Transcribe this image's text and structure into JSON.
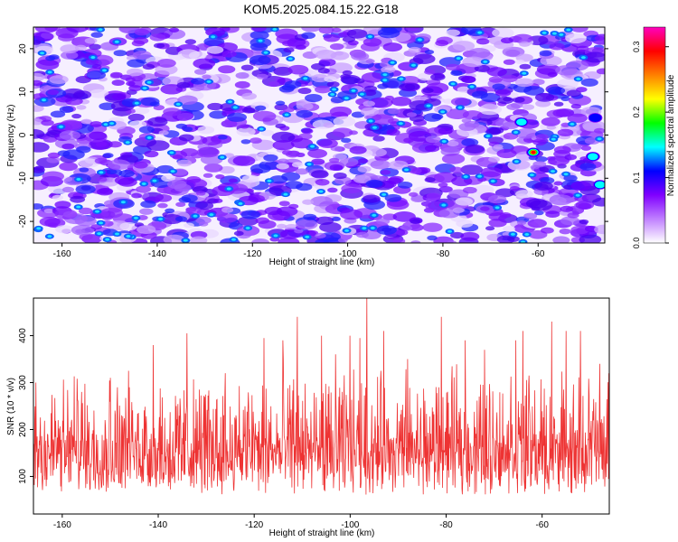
{
  "figure_title": "KOM5.2025.084.15.22.G18",
  "chart_data": [
    {
      "type": "heatmap",
      "xlabel": "Height of straight line (km)",
      "ylabel": "Frequency (Hz)",
      "xlim": [
        -166,
        -46
      ],
      "ylim": [
        -25,
        25
      ],
      "xticks": [
        -160,
        -140,
        -120,
        -100,
        -80,
        -60
      ],
      "xtick_labels": [
        "-160",
        "-140",
        "-120",
        "-100",
        "-80",
        "-60"
      ],
      "yticks": [
        -20,
        -10,
        0,
        10,
        20
      ],
      "ytick_labels": [
        "-20",
        "-10",
        "0",
        "10",
        "20"
      ],
      "colorbar": {
        "label": "Normalized spectral amplitude",
        "range": [
          0,
          0.33
        ],
        "ticks": [
          0,
          0.1,
          0.2,
          0.3
        ],
        "tick_labels": [
          "0.0",
          "0.1",
          "0.2",
          "0.3"
        ],
        "colors": [
          "#ffffff",
          "#c080ff",
          "#8000ff",
          "#0000ff",
          "#00ffff",
          "#00ff00",
          "#ffff00",
          "#ff8000",
          "#ff0000",
          "#ff00c0"
        ]
      },
      "peaks": [
        {
          "x": -63.5,
          "y": 3,
          "value": 0.15
        },
        {
          "x": -61,
          "y": -4,
          "value": 0.26
        },
        {
          "x": -48.5,
          "y": -5,
          "value": 0.15
        },
        {
          "x": -47,
          "y": -11.5,
          "value": 0.14
        },
        {
          "x": -48,
          "y": 4,
          "value": 0.1
        }
      ],
      "background_level": 0.05
    },
    {
      "type": "line",
      "xlabel": "Height of straight line (km)",
      "ylabel": "SNR (10 * v/v)",
      "xlim": [
        -166,
        -46
      ],
      "ylim": [
        20,
        480
      ],
      "xticks": [
        -160,
        -140,
        -120,
        -100,
        -80,
        -60
      ],
      "xtick_labels": [
        "-160",
        "-140",
        "-120",
        "-100",
        "-80",
        "-60"
      ],
      "yticks": [
        100,
        200,
        300,
        400
      ],
      "ytick_labels": [
        "100",
        "200",
        "300",
        "400"
      ],
      "color": "#ee3333",
      "baseline": 120,
      "spikes": [
        {
          "x": -165.5,
          "y": 300
        },
        {
          "x": -156,
          "y": 280
        },
        {
          "x": -150,
          "y": 310
        },
        {
          "x": -146,
          "y": 290
        },
        {
          "x": -141,
          "y": 380
        },
        {
          "x": -134,
          "y": 405
        },
        {
          "x": -126,
          "y": 320
        },
        {
          "x": -118,
          "y": 395
        },
        {
          "x": -114,
          "y": 390
        },
        {
          "x": -111,
          "y": 440
        },
        {
          "x": -106,
          "y": 400
        },
        {
          "x": -103,
          "y": 360
        },
        {
          "x": -100,
          "y": 400
        },
        {
          "x": -98,
          "y": 395
        },
        {
          "x": -96.5,
          "y": 480
        },
        {
          "x": -93,
          "y": 410
        },
        {
          "x": -88,
          "y": 350
        },
        {
          "x": -81,
          "y": 440
        },
        {
          "x": -76,
          "y": 390
        },
        {
          "x": -72,
          "y": 370
        },
        {
          "x": -65.5,
          "y": 390
        },
        {
          "x": -64,
          "y": 410
        },
        {
          "x": -58,
          "y": 430
        },
        {
          "x": -55,
          "y": 410
        },
        {
          "x": -52,
          "y": 410
        },
        {
          "x": -48,
          "y": 340
        }
      ]
    }
  ]
}
